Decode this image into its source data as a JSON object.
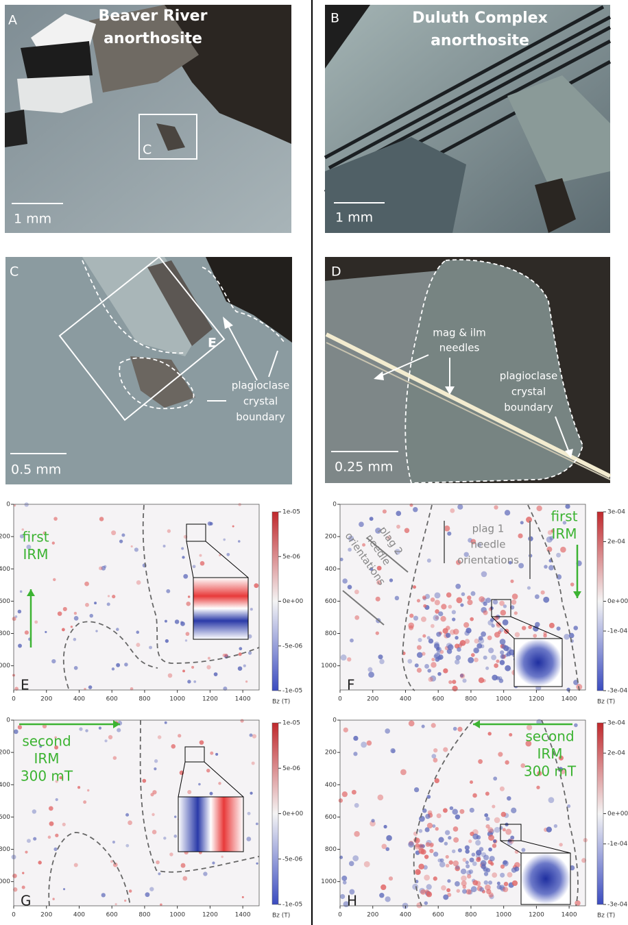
{
  "panels": {
    "A": {
      "label": "A",
      "title": [
        "Beaver River",
        "anorthosite"
      ],
      "scale_bar": "1 mm",
      "box_label": "C"
    },
    "B": {
      "label": "B",
      "title": [
        "Duluth Complex",
        "anorthosite"
      ],
      "scale_bar": "1 mm"
    },
    "C": {
      "label": "C",
      "scale_bar": "0.5 mm",
      "box_label": "E",
      "annotation": [
        "plagioclase",
        "crystal",
        "boundary"
      ]
    },
    "D": {
      "label": "D",
      "scale_bar": "0.25 mm",
      "annotations": [
        [
          "mag & ilm",
          "needles"
        ],
        [
          "plagioclase",
          "crystal",
          "boundary"
        ]
      ]
    }
  },
  "maps": [
    {
      "label": "E",
      "xlim": [
        0,
        1500
      ],
      "ylim": [
        0,
        1150
      ],
      "xticks": [
        0,
        200,
        400,
        600,
        800,
        1000,
        1200,
        1400
      ],
      "yticks": [
        0,
        200,
        400,
        600,
        800,
        1000
      ],
      "clim": [
        -1e-05,
        1e-05
      ],
      "cticks": [
        {
          "value": 1e-05,
          "label": "1e-05"
        },
        {
          "value": 5e-06,
          "label": "5e-06"
        },
        {
          "value": 0,
          "label": "0e+00"
        },
        {
          "value": -5e-06,
          "label": "-5e-06"
        },
        {
          "value": -1e-05,
          "label": "-1e-05"
        }
      ],
      "colorbar_label": "Bz (T)",
      "field": [
        "first",
        "IRM"
      ],
      "notes": []
    },
    {
      "label": "F",
      "xlim": [
        0,
        1500
      ],
      "ylim": [
        0,
        1150
      ],
      "xticks": [
        0,
        200,
        400,
        600,
        800,
        1000,
        1200,
        1400
      ],
      "yticks": [
        0,
        200,
        400,
        600,
        800,
        1000
      ],
      "clim": [
        -0.0003,
        0.0003
      ],
      "cticks": [
        {
          "value": 0.0003,
          "label": "3e-04"
        },
        {
          "value": 0.0002,
          "label": "2e-04"
        },
        {
          "value": 0,
          "label": "0e+00"
        },
        {
          "value": -0.0001,
          "label": "-1e-04"
        },
        {
          "value": -0.0003,
          "label": "-3e-04"
        }
      ],
      "colorbar_label": "Bz (T)",
      "field": [
        "first",
        "IRM"
      ],
      "notes": [
        [
          "plag 1",
          "needle",
          "orientations"
        ],
        [
          "plag 2",
          "needle",
          "orientations"
        ]
      ]
    },
    {
      "label": "G",
      "xlim": [
        0,
        1500
      ],
      "ylim": [
        0,
        1150
      ],
      "xticks": [
        0,
        200,
        400,
        600,
        800,
        1000,
        1200,
        1400
      ],
      "yticks": [
        0,
        200,
        400,
        600,
        800,
        1000
      ],
      "clim": [
        -1e-05,
        1e-05
      ],
      "cticks": [
        {
          "value": 1e-05,
          "label": "1e-05"
        },
        {
          "value": 5e-06,
          "label": "5e-06"
        },
        {
          "value": 0,
          "label": "0e+00"
        },
        {
          "value": -5e-06,
          "label": "-5e-06"
        },
        {
          "value": -1e-05,
          "label": "-1e-05"
        }
      ],
      "colorbar_label": "Bz (T)",
      "field": [
        "second",
        "IRM",
        "300 mT"
      ],
      "notes": []
    },
    {
      "label": "H",
      "xlim": [
        0,
        1500
      ],
      "ylim": [
        0,
        1150
      ],
      "xticks": [
        0,
        200,
        400,
        600,
        800,
        1000,
        1200,
        1400
      ],
      "yticks": [
        0,
        200,
        400,
        600,
        800,
        1000
      ],
      "clim": [
        -0.0003,
        0.0003
      ],
      "cticks": [
        {
          "value": 0.0003,
          "label": "3e-04"
        },
        {
          "value": 0.0002,
          "label": "2e-04"
        },
        {
          "value": 0,
          "label": "0e+00"
        },
        {
          "value": -0.0001,
          "label": "-1e-04"
        },
        {
          "value": -0.0003,
          "label": "-3e-04"
        }
      ],
      "colorbar_label": "Bz (T)",
      "field": [
        "second",
        "IRM",
        "300 mT"
      ],
      "notes": []
    }
  ]
}
